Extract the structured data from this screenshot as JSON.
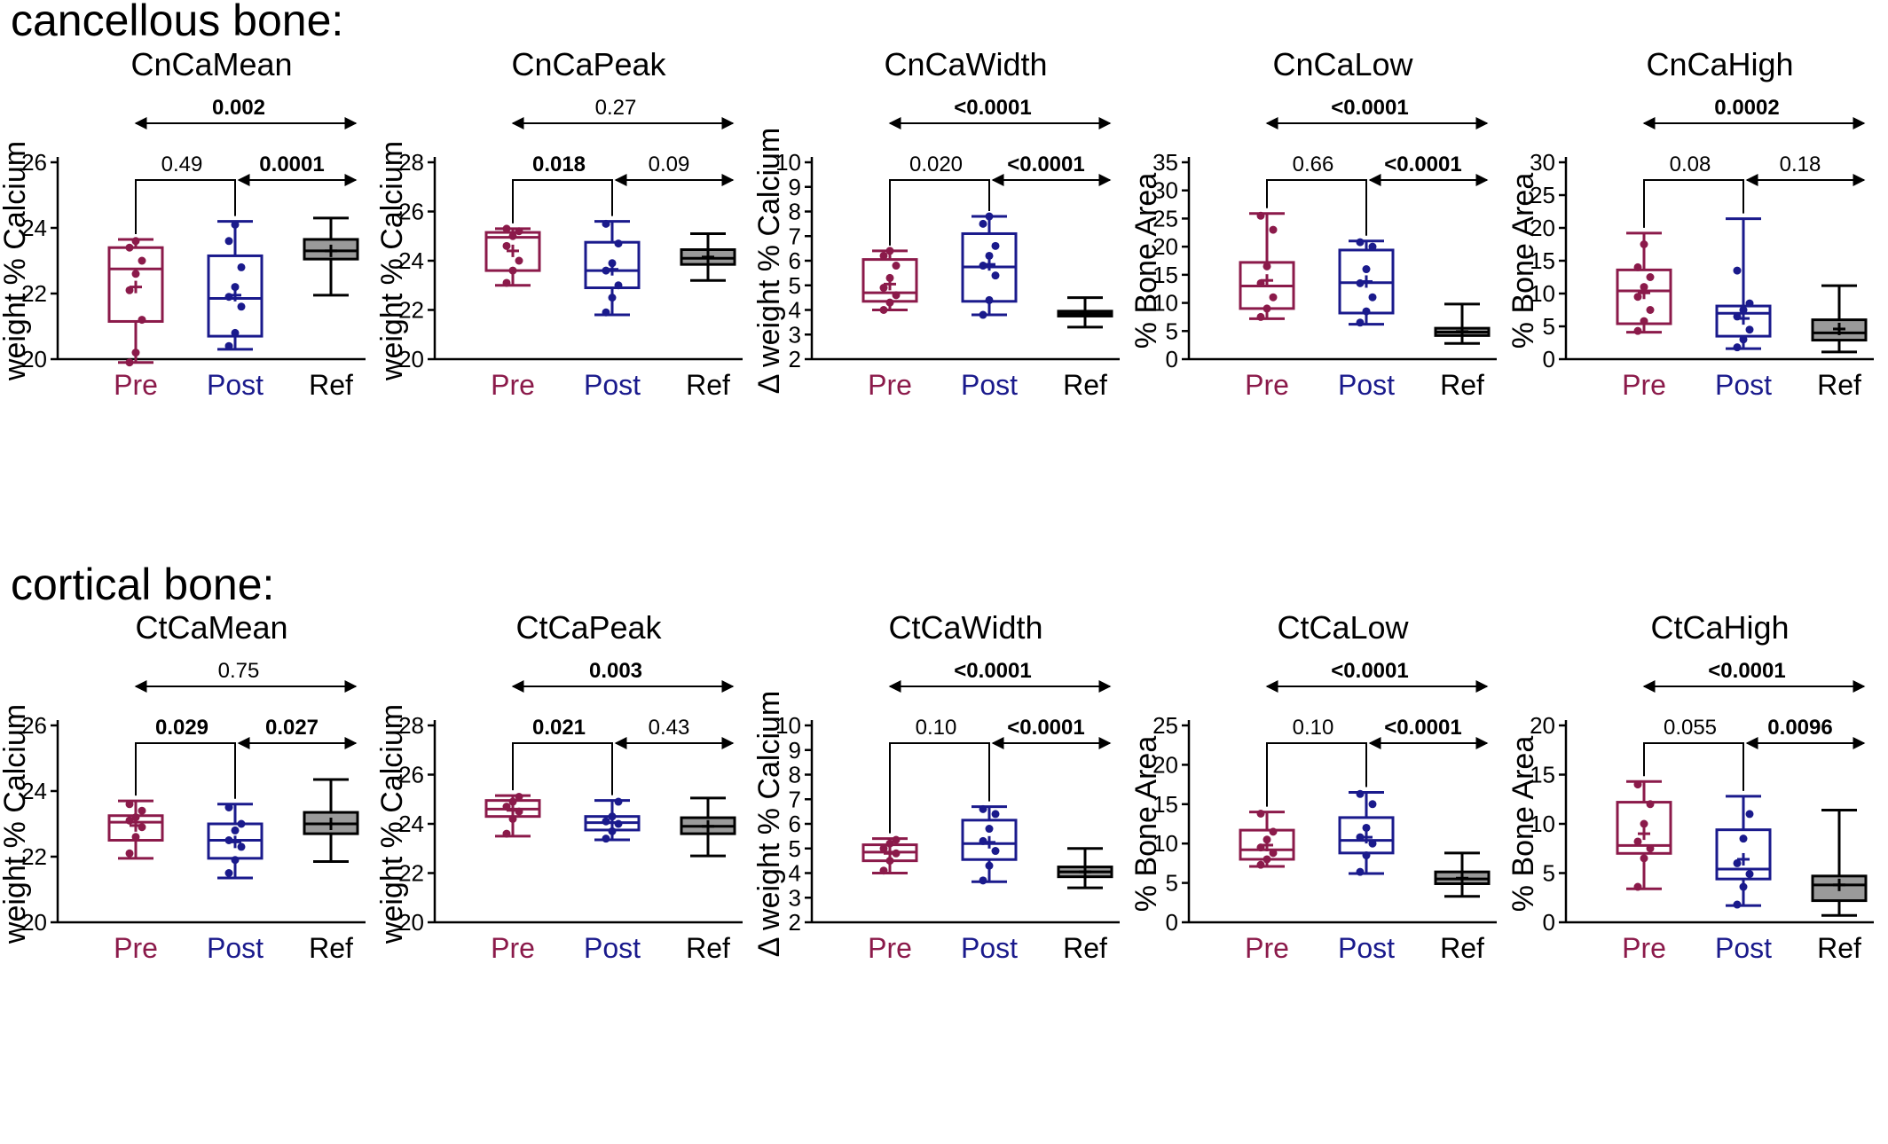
{
  "sections": [
    {
      "title": "cancellous bone:"
    },
    {
      "title": "cortical bone:"
    }
  ],
  "colors": {
    "pre": "#8b1a4a",
    "post": "#1a1a8c",
    "ref": "#000000",
    "ref_fill": "#9a9a9a"
  },
  "categories": [
    "Pre",
    "Post",
    "Ref"
  ],
  "chart_data": [
    {
      "type": "box",
      "title": "CnCaMean",
      "ylabel": "weight % Calcium",
      "ylim": [
        20,
        26
      ],
      "yticks": [
        20,
        22,
        24,
        26
      ],
      "categories": [
        "Pre",
        "Post",
        "Ref"
      ],
      "boxes": [
        {
          "min": 19.9,
          "q1": 21.15,
          "median": 22.75,
          "q3": 23.4,
          "max": 23.65,
          "mean": 22.2,
          "points": [
            19.9,
            20.2,
            21.2,
            22.1,
            22.6,
            23.0,
            23.4,
            23.6
          ]
        },
        {
          "min": 20.3,
          "q1": 20.7,
          "median": 21.85,
          "q3": 23.15,
          "max": 24.2,
          "mean": 21.95,
          "points": [
            20.4,
            20.8,
            21.6,
            21.9,
            22.2,
            22.8,
            23.6,
            24.1
          ]
        },
        {
          "min": 21.95,
          "q1": 23.05,
          "median": 23.3,
          "q3": 23.65,
          "max": 24.3,
          "mean": 23.3,
          "points": []
        }
      ],
      "comparisons": [
        {
          "label": "0.49",
          "bold": false,
          "type": "bracket",
          "level": 1
        },
        {
          "label": "0.0001",
          "bold": true,
          "type": "arrow",
          "level": 1
        },
        {
          "label": "0.002",
          "bold": true,
          "type": "arrow-full",
          "level": 2
        }
      ]
    },
    {
      "type": "box",
      "title": "CnCaPeak",
      "ylabel": "weight % Calcium",
      "ylim": [
        20,
        28
      ],
      "yticks": [
        20,
        22,
        24,
        26,
        28
      ],
      "categories": [
        "Pre",
        "Post",
        "Ref"
      ],
      "boxes": [
        {
          "min": 23.0,
          "q1": 23.6,
          "median": 24.95,
          "q3": 25.15,
          "max": 25.3,
          "mean": 24.4,
          "points": [
            23.1,
            23.6,
            24.0,
            24.6,
            25.0,
            25.2,
            25.3
          ]
        },
        {
          "min": 21.8,
          "q1": 22.9,
          "median": 23.6,
          "q3": 24.75,
          "max": 25.6,
          "mean": 23.65,
          "points": [
            21.9,
            22.5,
            23.0,
            23.6,
            23.9,
            24.7,
            25.5
          ]
        },
        {
          "min": 23.2,
          "q1": 23.85,
          "median": 24.1,
          "q3": 24.45,
          "max": 25.1,
          "mean": 24.15,
          "points": []
        }
      ],
      "comparisons": [
        {
          "label": "0.018",
          "bold": true,
          "type": "bracket",
          "level": 1
        },
        {
          "label": "0.09",
          "bold": false,
          "type": "arrow",
          "level": 1
        },
        {
          "label": "0.27",
          "bold": false,
          "type": "arrow-full",
          "level": 2
        }
      ]
    },
    {
      "type": "box",
      "title": "CnCaWidth",
      "ylabel": "Δ weight % Calcium",
      "ylim": [
        2,
        10
      ],
      "yticks": [
        2,
        3,
        4,
        5,
        6,
        7,
        8,
        9,
        10
      ],
      "categories": [
        "Pre",
        "Post",
        "Ref"
      ],
      "boxes": [
        {
          "min": 4.0,
          "q1": 4.35,
          "median": 4.7,
          "q3": 6.05,
          "max": 6.4,
          "mean": 5.05,
          "points": [
            4.0,
            4.3,
            4.6,
            4.9,
            5.3,
            5.8,
            6.2,
            6.4
          ]
        },
        {
          "min": 3.8,
          "q1": 4.35,
          "median": 5.75,
          "q3": 7.1,
          "max": 7.8,
          "mean": 5.85,
          "points": [
            3.8,
            4.4,
            5.4,
            5.8,
            6.2,
            6.6,
            7.5,
            7.8
          ]
        },
        {
          "min": 3.3,
          "q1": 3.75,
          "median": 3.85,
          "q3": 3.95,
          "max": 4.5,
          "mean": 3.85,
          "points": []
        }
      ],
      "comparisons": [
        {
          "label": "0.020",
          "bold": false,
          "type": "bracket",
          "level": 1
        },
        {
          "label": "<0.0001",
          "bold": true,
          "type": "arrow",
          "level": 1
        },
        {
          "label": "<0.0001",
          "bold": true,
          "type": "arrow-full",
          "level": 2
        }
      ]
    },
    {
      "type": "box",
      "title": "CnCaLow",
      "ylabel": "% Bone Area",
      "ylim": [
        0,
        35
      ],
      "yticks": [
        0,
        5,
        10,
        15,
        20,
        25,
        30,
        35
      ],
      "categories": [
        "Pre",
        "Post",
        "Ref"
      ],
      "boxes": [
        {
          "min": 7.2,
          "q1": 9.0,
          "median": 13.0,
          "q3": 17.2,
          "max": 25.9,
          "mean": 14.0,
          "points": [
            7.5,
            9.0,
            11.0,
            13.5,
            16.5,
            23.0,
            25.5
          ]
        },
        {
          "min": 6.2,
          "q1": 8.2,
          "median": 13.6,
          "q3": 19.4,
          "max": 21.0,
          "mean": 13.8,
          "points": [
            6.5,
            8.5,
            11.0,
            13.5,
            16.0,
            20.0,
            20.8
          ]
        },
        {
          "min": 2.8,
          "q1": 4.2,
          "median": 4.8,
          "q3": 5.5,
          "max": 9.8,
          "mean": 4.9,
          "points": []
        }
      ],
      "comparisons": [
        {
          "label": "0.66",
          "bold": false,
          "type": "bracket",
          "level": 1
        },
        {
          "label": "<0.0001",
          "bold": true,
          "type": "arrow",
          "level": 1
        },
        {
          "label": "<0.0001",
          "bold": true,
          "type": "arrow-full",
          "level": 2
        }
      ]
    },
    {
      "type": "box",
      "title": "CnCaHigh",
      "ylabel": "% Bone Area",
      "ylim": [
        0,
        30
      ],
      "yticks": [
        0,
        5,
        10,
        15,
        20,
        25,
        30
      ],
      "categories": [
        "Pre",
        "Post",
        "Ref"
      ],
      "boxes": [
        {
          "min": 4.1,
          "q1": 5.4,
          "median": 10.4,
          "q3": 13.6,
          "max": 19.2,
          "mean": 10.1,
          "points": [
            4.3,
            5.8,
            7.5,
            9.5,
            11.0,
            12.5,
            14.0,
            17.5
          ]
        },
        {
          "min": 1.6,
          "q1": 3.5,
          "median": 7.0,
          "q3": 8.1,
          "max": 21.4,
          "mean": 6.2,
          "points": [
            1.8,
            3.0,
            4.5,
            6.5,
            7.5,
            8.5,
            13.5
          ]
        },
        {
          "min": 1.1,
          "q1": 2.9,
          "median": 4.0,
          "q3": 6.0,
          "max": 11.2,
          "mean": 4.6,
          "points": []
        }
      ],
      "comparisons": [
        {
          "label": "0.08",
          "bold": false,
          "type": "bracket",
          "level": 1
        },
        {
          "label": "0.18",
          "bold": false,
          "type": "arrow",
          "level": 1
        },
        {
          "label": "0.0002",
          "bold": true,
          "type": "arrow-full",
          "level": 2
        }
      ]
    },
    {
      "type": "box",
      "title": "CtCaMean",
      "ylabel": "weight % Calcium",
      "ylim": [
        20,
        26
      ],
      "yticks": [
        20,
        22,
        24,
        26
      ],
      "categories": [
        "Pre",
        "Post",
        "Ref"
      ],
      "boxes": [
        {
          "min": 21.95,
          "q1": 22.5,
          "median": 23.05,
          "q3": 23.25,
          "max": 23.7,
          "mean": 22.95,
          "points": [
            22.1,
            22.6,
            22.9,
            23.1,
            23.2,
            23.4,
            23.6
          ]
        },
        {
          "min": 21.35,
          "q1": 21.95,
          "median": 22.5,
          "q3": 23.0,
          "max": 23.6,
          "mean": 22.45,
          "points": [
            21.5,
            21.9,
            22.3,
            22.5,
            22.8,
            23.0,
            23.5
          ]
        },
        {
          "min": 21.85,
          "q1": 22.7,
          "median": 23.0,
          "q3": 23.35,
          "max": 24.35,
          "mean": 23.0,
          "points": []
        }
      ],
      "comparisons": [
        {
          "label": "0.029",
          "bold": true,
          "type": "bracket",
          "level": 1
        },
        {
          "label": "0.027",
          "bold": true,
          "type": "arrow",
          "level": 1
        },
        {
          "label": "0.75",
          "bold": false,
          "type": "arrow-full",
          "level": 2
        }
      ]
    },
    {
      "type": "box",
      "title": "CtCaPeak",
      "ylabel": "weight % Calcium",
      "ylim": [
        20,
        28
      ],
      "yticks": [
        20,
        22,
        24,
        26,
        28
      ],
      "categories": [
        "Pre",
        "Post",
        "Ref"
      ],
      "boxes": [
        {
          "min": 23.5,
          "q1": 24.3,
          "median": 24.6,
          "q3": 24.95,
          "max": 25.15,
          "mean": 24.55,
          "points": [
            23.6,
            24.2,
            24.5,
            24.7,
            24.9,
            25.1
          ]
        },
        {
          "min": 23.35,
          "q1": 23.75,
          "median": 24.05,
          "q3": 24.3,
          "max": 24.95,
          "mean": 24.05,
          "points": [
            23.4,
            23.7,
            24.0,
            24.1,
            24.3,
            24.9
          ]
        },
        {
          "min": 22.7,
          "q1": 23.6,
          "median": 23.9,
          "q3": 24.25,
          "max": 25.05,
          "mean": 23.9,
          "points": []
        }
      ],
      "comparisons": [
        {
          "label": "0.021",
          "bold": true,
          "type": "bracket",
          "level": 1
        },
        {
          "label": "0.43",
          "bold": false,
          "type": "arrow",
          "level": 1
        },
        {
          "label": "0.003",
          "bold": true,
          "type": "arrow-full",
          "level": 2
        }
      ]
    },
    {
      "type": "box",
      "title": "CtCaWidth",
      "ylabel": "Δ weight % Calcium",
      "ylim": [
        2,
        10
      ],
      "yticks": [
        2,
        3,
        4,
        5,
        6,
        7,
        8,
        9,
        10
      ],
      "categories": [
        "Pre",
        "Post",
        "Ref"
      ],
      "boxes": [
        {
          "min": 4.0,
          "q1": 4.5,
          "median": 4.85,
          "q3": 5.15,
          "max": 5.4,
          "mean": 4.8,
          "points": [
            4.1,
            4.5,
            4.8,
            5.0,
            5.2,
            5.35
          ]
        },
        {
          "min": 3.65,
          "q1": 4.55,
          "median": 5.2,
          "q3": 6.15,
          "max": 6.7,
          "mean": 5.25,
          "points": [
            3.7,
            4.3,
            4.9,
            5.3,
            5.8,
            6.4,
            6.6
          ]
        },
        {
          "min": 3.4,
          "q1": 3.85,
          "median": 4.05,
          "q3": 4.25,
          "max": 5.0,
          "mean": 4.05,
          "points": []
        }
      ],
      "comparisons": [
        {
          "label": "0.10",
          "bold": false,
          "type": "bracket",
          "level": 1
        },
        {
          "label": "<0.0001",
          "bold": true,
          "type": "arrow",
          "level": 1
        },
        {
          "label": "<0.0001",
          "bold": true,
          "type": "arrow-full",
          "level": 2
        }
      ]
    },
    {
      "type": "box",
      "title": "CtCaLow",
      "ylabel": "% Bone Area",
      "ylim": [
        0,
        25
      ],
      "yticks": [
        0,
        5,
        10,
        15,
        20,
        25
      ],
      "categories": [
        "Pre",
        "Post",
        "Ref"
      ],
      "boxes": [
        {
          "min": 7.1,
          "q1": 8.0,
          "median": 9.2,
          "q3": 11.7,
          "max": 14.0,
          "mean": 9.8,
          "points": [
            7.3,
            8.0,
            8.8,
            9.5,
            10.5,
            11.5,
            13.8
          ]
        },
        {
          "min": 6.2,
          "q1": 8.8,
          "median": 10.4,
          "q3": 13.3,
          "max": 16.5,
          "mean": 10.8,
          "points": [
            6.4,
            8.5,
            10.0,
            10.8,
            12.0,
            15.0,
            16.3
          ]
        },
        {
          "min": 3.3,
          "q1": 4.9,
          "median": 5.5,
          "q3": 6.4,
          "max": 8.8,
          "mean": 5.6,
          "points": []
        }
      ],
      "comparisons": [
        {
          "label": "0.10",
          "bold": false,
          "type": "bracket",
          "level": 1
        },
        {
          "label": "<0.0001",
          "bold": true,
          "type": "arrow",
          "level": 1
        },
        {
          "label": "<0.0001",
          "bold": true,
          "type": "arrow-full",
          "level": 2
        }
      ]
    },
    {
      "type": "box",
      "title": "CtCaHigh",
      "ylabel": "% Bone Area",
      "ylim": [
        0,
        20
      ],
      "yticks": [
        0,
        5,
        10,
        15,
        20
      ],
      "categories": [
        "Pre",
        "Post",
        "Ref"
      ],
      "boxes": [
        {
          "min": 3.4,
          "q1": 7.0,
          "median": 7.8,
          "q3": 12.2,
          "max": 14.3,
          "mean": 9.0,
          "points": [
            3.6,
            6.5,
            7.5,
            8.2,
            10.0,
            12.0,
            14.0
          ]
        },
        {
          "min": 1.7,
          "q1": 4.4,
          "median": 5.4,
          "q3": 9.4,
          "max": 12.8,
          "mean": 6.4,
          "points": [
            1.8,
            3.6,
            4.9,
            6.0,
            8.5,
            11.0
          ]
        },
        {
          "min": 0.7,
          "q1": 2.2,
          "median": 3.8,
          "q3": 4.7,
          "max": 11.4,
          "mean": 3.8,
          "points": []
        }
      ],
      "comparisons": [
        {
          "label": "0.055",
          "bold": false,
          "type": "bracket",
          "level": 1
        },
        {
          "label": "0.0096",
          "bold": true,
          "type": "arrow",
          "level": 1
        },
        {
          "label": "<0.0001",
          "bold": true,
          "type": "arrow-full",
          "level": 2
        }
      ]
    }
  ]
}
